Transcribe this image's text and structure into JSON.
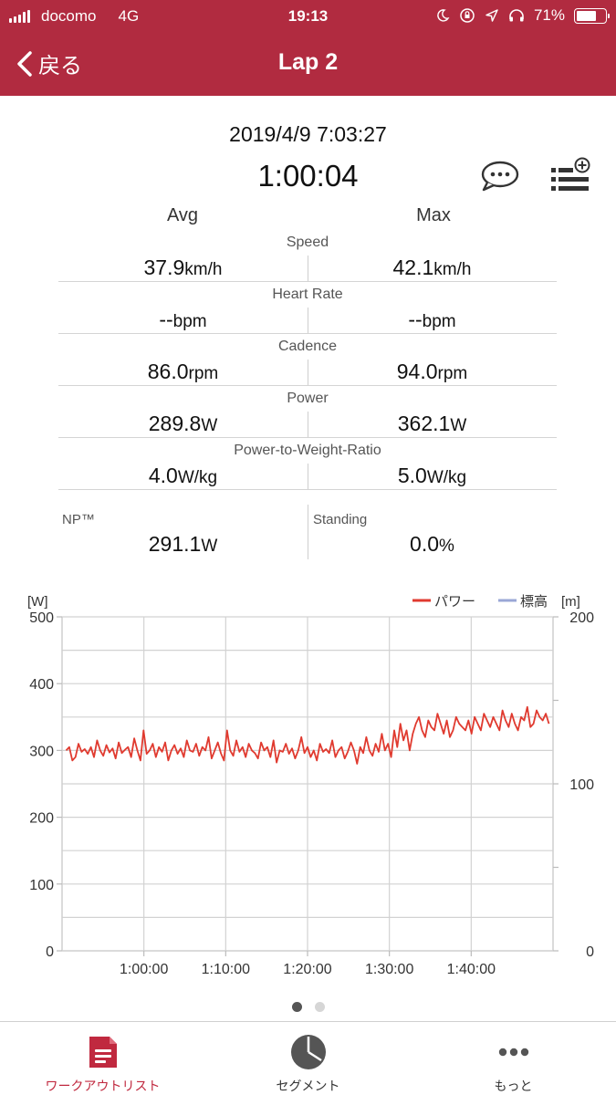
{
  "status_bar": {
    "carrier": "docomo",
    "network": "4G",
    "time": "19:13",
    "battery_percent": "71%",
    "battery_level": 0.71
  },
  "header": {
    "back_label": "戻る",
    "title": "Lap 2"
  },
  "summary": {
    "date": "2019/4/9 7:03:27",
    "duration": "1:00:04",
    "col_avg": "Avg",
    "col_max": "Max"
  },
  "metrics": [
    {
      "label": "Speed",
      "avg": "37.9",
      "max": "42.1",
      "unit": "km/h"
    },
    {
      "label": "Heart Rate",
      "avg": "--",
      "max": "--",
      "unit": "bpm"
    },
    {
      "label": "Cadence",
      "avg": "86.0",
      "max": "94.0",
      "unit": "rpm"
    },
    {
      "label": "Power",
      "avg": "289.8",
      "max": "362.1",
      "unit": "W"
    },
    {
      "label": "Power-to-Weight-Ratio",
      "avg": "4.0",
      "max": "5.0",
      "unit": "W/kg"
    }
  ],
  "extra": {
    "np_label": "NP™",
    "np_value": "291.1",
    "np_unit": "W",
    "standing_label": "Standing",
    "standing_value": "0.0",
    "standing_unit": "%"
  },
  "chart_data": {
    "type": "line",
    "left_unit": "[W]",
    "right_unit": "[m]",
    "y_ticks": [
      "0",
      "100",
      "200",
      "300",
      "400",
      "500"
    ],
    "y2_ticks": [
      "0",
      "100",
      "200"
    ],
    "x_ticks": [
      "1:00:00",
      "1:10:00",
      "1:20:00",
      "1:30:00",
      "1:40:00"
    ],
    "ylim": [
      0,
      500
    ],
    "y2lim": [
      0,
      200
    ],
    "xlim_minutes": [
      50,
      110
    ],
    "x_tick_minutes": [
      60,
      70,
      80,
      90,
      100
    ],
    "grid": true,
    "legend_position": "top-right",
    "series": [
      {
        "name": "パワー",
        "color": "#e03a2f",
        "x_minutes_start": 50.5,
        "x_minutes_end": 109.5,
        "values": [
          300,
          305,
          285,
          290,
          310,
          298,
          302,
          295,
          305,
          290,
          315,
          300,
          292,
          308,
          297,
          303,
          288,
          312,
          296,
          301,
          305,
          290,
          318,
          300,
          285,
          330,
          295,
          300,
          310,
          290,
          305,
          298,
          312,
          285,
          300,
          308,
          295,
          303,
          290,
          315,
          300,
          298,
          310,
          292,
          305,
          300,
          320,
          288,
          300,
          312,
          296,
          285,
          330,
          300,
          292,
          315,
          298,
          305,
          290,
          310,
          300,
          296,
          288,
          312,
          300,
          305,
          290,
          315,
          282,
          300,
          298,
          310,
          295,
          303,
          288,
          300,
          320,
          296,
          305,
          290,
          300,
          285,
          310,
          298,
          302,
          296,
          315,
          290,
          300,
          305,
          288,
          298,
          312,
          300,
          280,
          305,
          296,
          320,
          300,
          292,
          310,
          298,
          325,
          300,
          310,
          290,
          330,
          305,
          340,
          315,
          330,
          300,
          325,
          340,
          350,
          330,
          320,
          345,
          335,
          330,
          355,
          340,
          325,
          345,
          320,
          330,
          350,
          340,
          335,
          330,
          345,
          325,
          350,
          340,
          330,
          355,
          345,
          335,
          350,
          340,
          330,
          360,
          345,
          335,
          355,
          340,
          330,
          350,
          345,
          365,
          335,
          340,
          360,
          350,
          345,
          355,
          340
        ]
      },
      {
        "name": "標高",
        "color": "#9aa7d6",
        "values": []
      }
    ]
  },
  "pager": {
    "total": 2,
    "current": 1
  },
  "tabs": [
    {
      "label": "ワークアウトリスト",
      "icon": "document-icon",
      "active": true
    },
    {
      "label": "セグメント",
      "icon": "pie-chart-icon",
      "active": false
    },
    {
      "label": "もっと",
      "icon": "more-icon",
      "active": false
    }
  ],
  "colors": {
    "brand": "#b12b40",
    "power_line": "#e03a2f",
    "elevation_line": "#9aa7d6",
    "active_tab": "#c0293f"
  }
}
